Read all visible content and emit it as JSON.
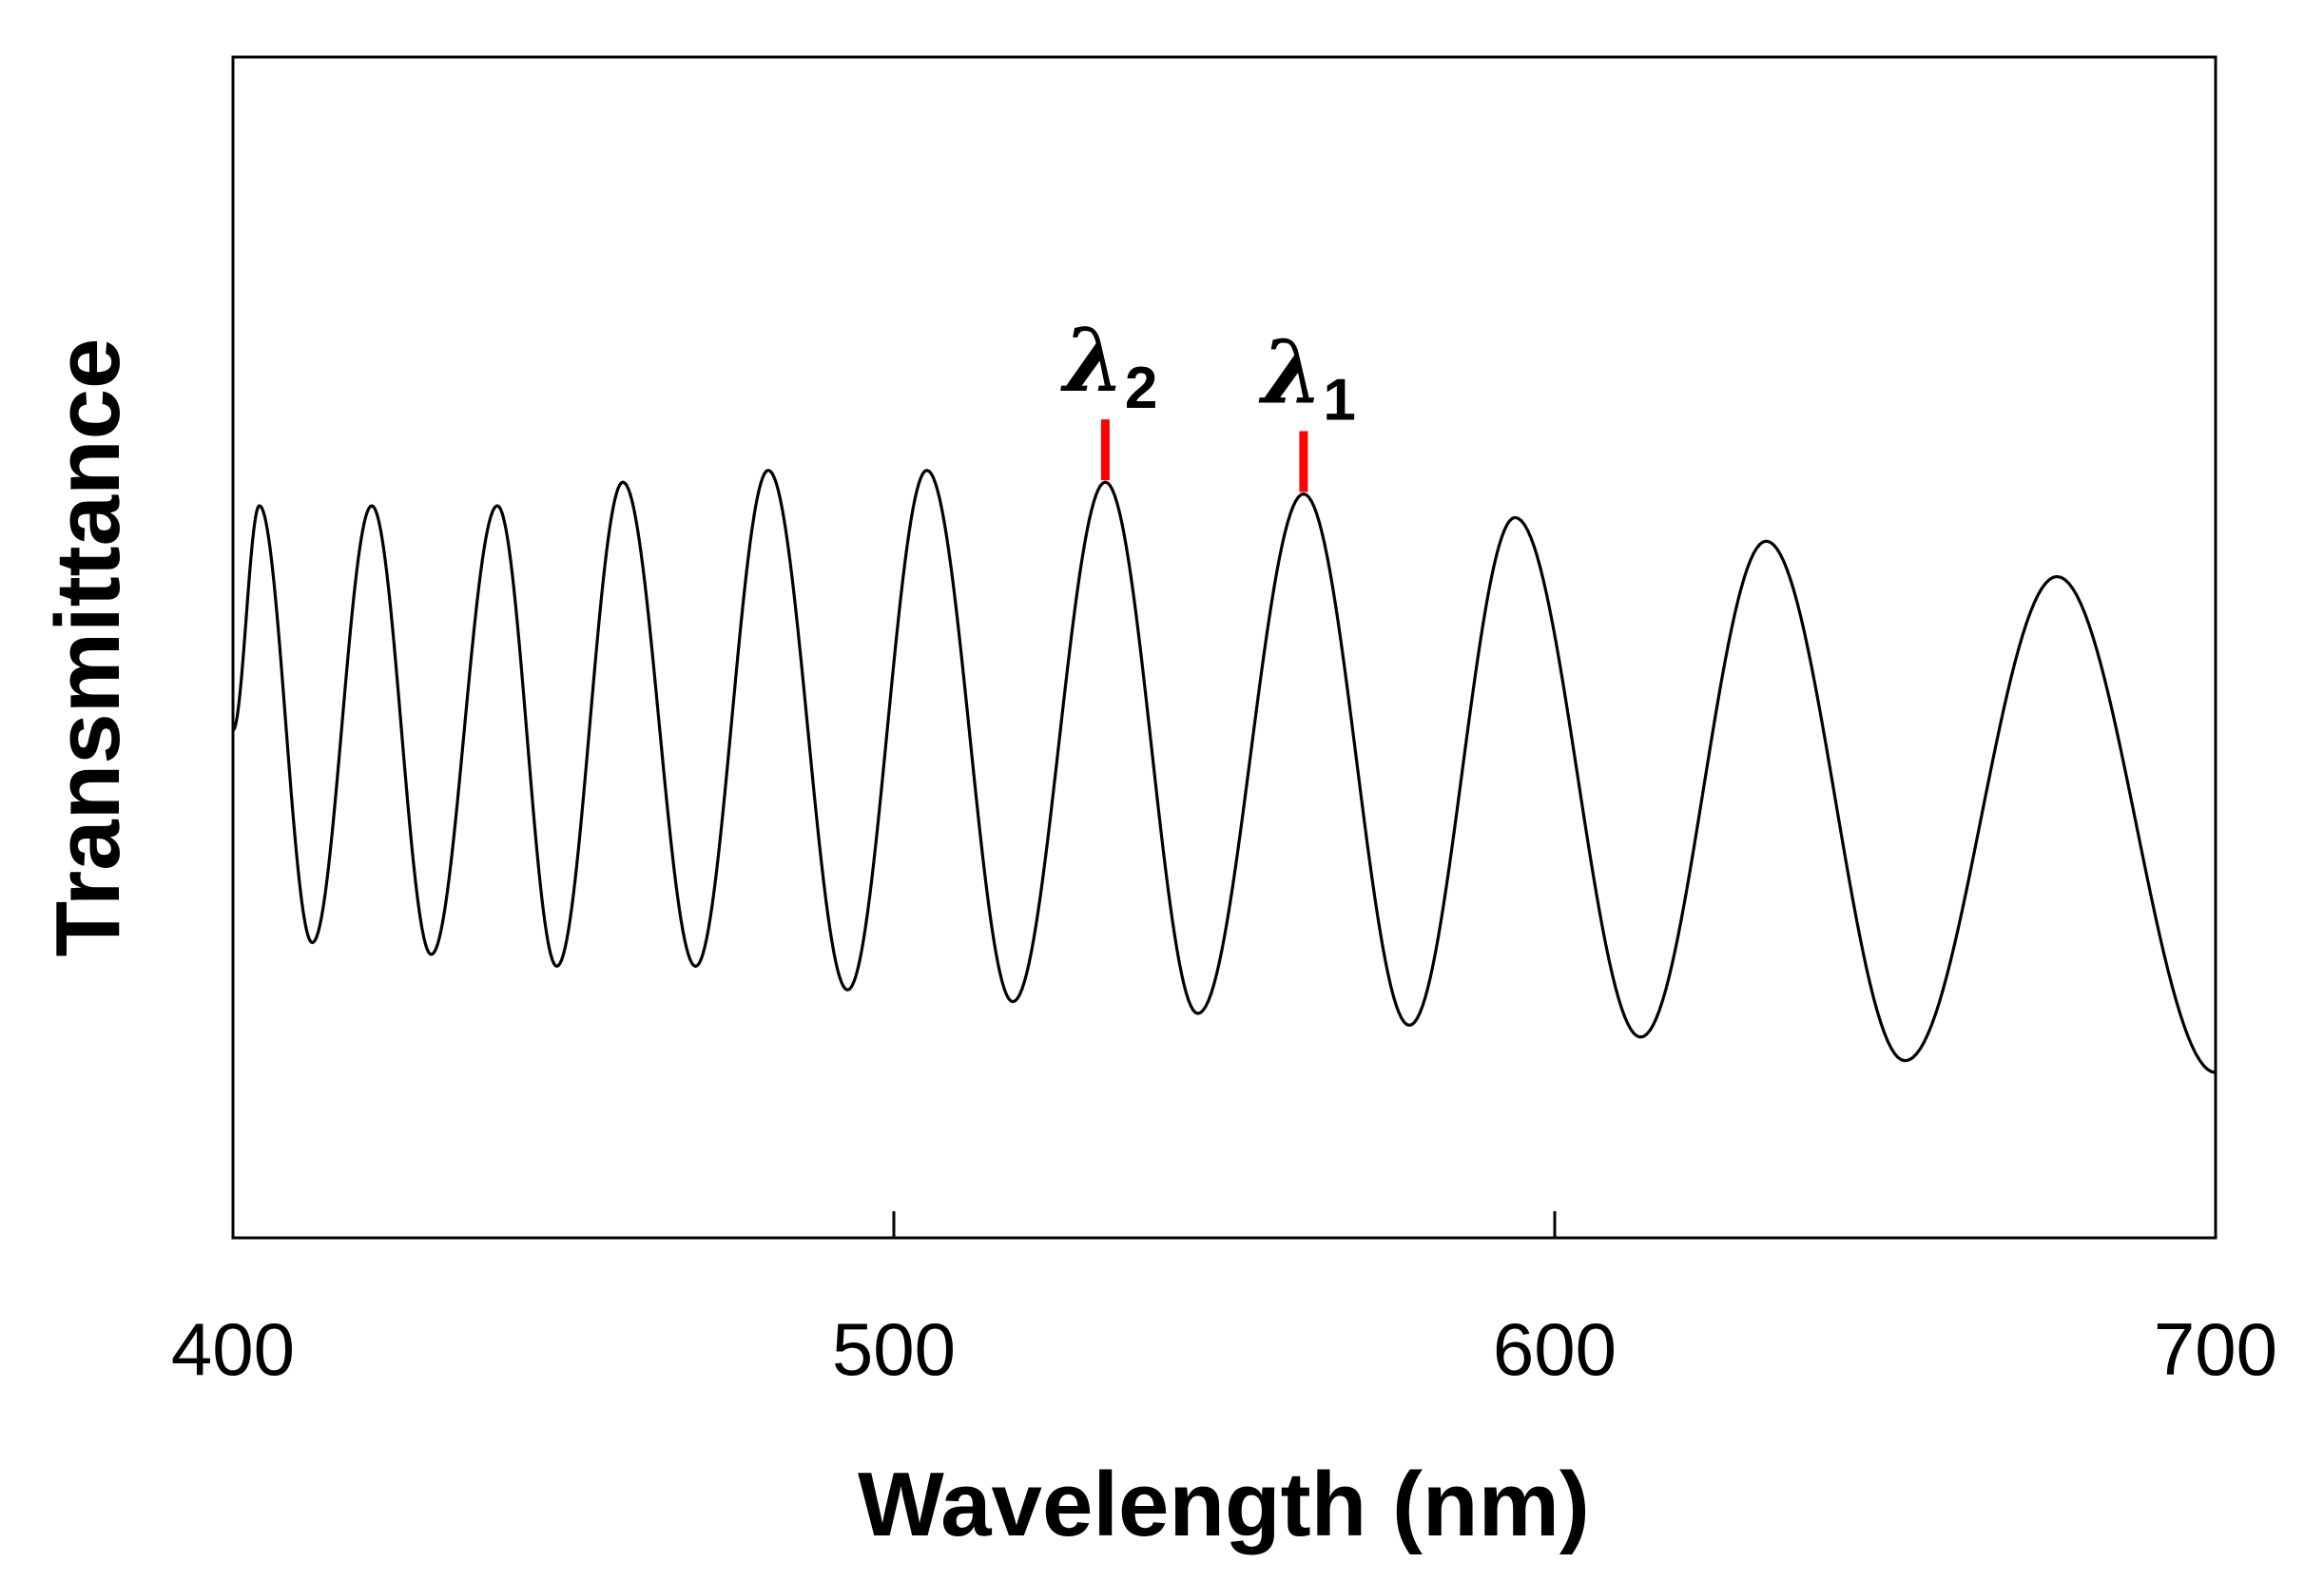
{
  "chart_data": {
    "type": "line",
    "xlabel": "Wavelength (nm)",
    "ylabel": "Transmittance",
    "xlim": [
      400,
      700
    ],
    "ylim": [
      0,
      1
    ],
    "x_ticks": [
      {
        "value": 400,
        "label": "400"
      },
      {
        "value": 500,
        "label": "500"
      },
      {
        "value": 600,
        "label": "600"
      },
      {
        "value": 700,
        "label": "700"
      }
    ],
    "y_ticks": [],
    "grid": false,
    "legend": "none",
    "line_color": "#000000",
    "marker_color": "#ff0000",
    "peaks": [
      {
        "x": 404,
        "y": 0.62
      },
      {
        "x": 421,
        "y": 0.62
      },
      {
        "x": 440,
        "y": 0.62
      },
      {
        "x": 459,
        "y": 0.64
      },
      {
        "x": 481,
        "y": 0.65
      },
      {
        "x": 505,
        "y": 0.65
      },
      {
        "x": 532,
        "y": 0.64
      },
      {
        "x": 562,
        "y": 0.63
      },
      {
        "x": 594,
        "y": 0.61
      },
      {
        "x": 632,
        "y": 0.59
      },
      {
        "x": 676,
        "y": 0.56
      }
    ],
    "valleys": [
      {
        "x": 412,
        "y": 0.25
      },
      {
        "x": 430,
        "y": 0.24
      },
      {
        "x": 449,
        "y": 0.23
      },
      {
        "x": 470,
        "y": 0.23
      },
      {
        "x": 493,
        "y": 0.21
      },
      {
        "x": 518,
        "y": 0.2
      },
      {
        "x": 546,
        "y": 0.19
      },
      {
        "x": 578,
        "y": 0.18
      },
      {
        "x": 613,
        "y": 0.17
      },
      {
        "x": 653,
        "y": 0.15
      }
    ],
    "start": {
      "x": 400,
      "y": 0.43
    },
    "end": {
      "x": 700,
      "y": 0.14
    },
    "annotations": [
      {
        "symbol": "λ",
        "subscript": "2",
        "x": 532,
        "y": 0.64
      },
      {
        "symbol": "λ",
        "subscript": "1",
        "x": 562,
        "y": 0.63
      }
    ]
  }
}
